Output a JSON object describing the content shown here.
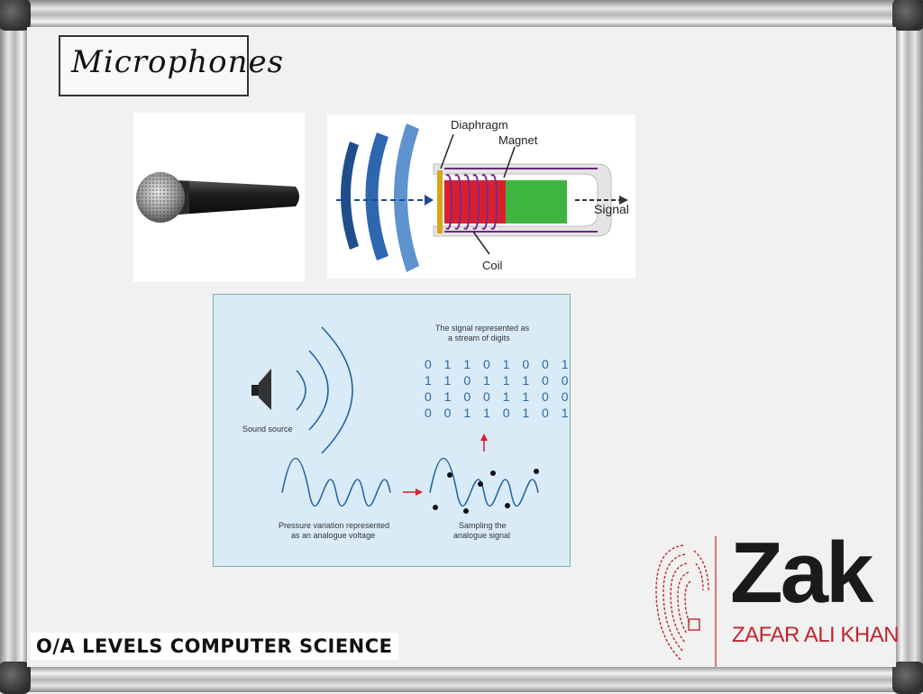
{
  "title": "Microphones",
  "course": "O/A LEVELS COMPUTER SCIENCE",
  "logo": {
    "main": "Zak",
    "name": "ZAFAR ALI KHAN"
  },
  "mic_diagram": {
    "diaphragm": "Diaphragm",
    "magnet": "Magnet",
    "signal": "Signal",
    "coil": "Coil"
  },
  "sampling_diagram": {
    "stream_title_1": "The signal represented as",
    "stream_title_2": "a stream of digits",
    "digit_rows": [
      "0 1 1 0 1 0 0 1",
      "1 1 0 1 1 1 0 0",
      "0 1 0 0 1 1 0 0",
      "0 0 1 1 0 1 0 1"
    ],
    "sound_source": "Sound source",
    "pressure_1": "Pressure variation represented",
    "pressure_2": "as an analogue voltage",
    "sampling_1": "Sampling the",
    "sampling_2": "analogue signal"
  },
  "colors": {
    "logo_red": "#c0262d",
    "digit_blue": "#2a6aa8",
    "magnet_red": "#d8202c",
    "magnet_green": "#3fb53f",
    "wave_blue": "#1f5fa0"
  }
}
